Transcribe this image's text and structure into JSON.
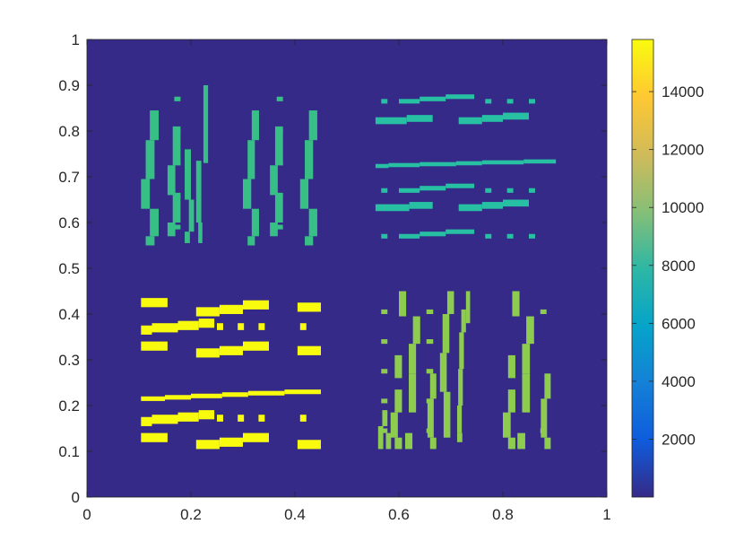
{
  "chart_data": {
    "type": "heatmap",
    "title": "",
    "xlabel": "",
    "ylabel": "",
    "xlim": [
      0,
      1
    ],
    "ylim": [
      0,
      1
    ],
    "grid": false,
    "background_value": 0,
    "xticks": [
      "0",
      "0.2",
      "0.4",
      "0.6",
      "0.8",
      "1"
    ],
    "yticks": [
      "0",
      "0.1",
      "0.2",
      "0.3",
      "0.4",
      "0.5",
      "0.6",
      "0.7",
      "0.8",
      "0.9",
      "1"
    ],
    "colorbar": {
      "colormap": "parula",
      "range": [
        0,
        15800
      ],
      "ticks": [
        "2000",
        "4000",
        "6000",
        "8000",
        "10000",
        "12000",
        "14000"
      ],
      "tick_values": [
        2000,
        4000,
        6000,
        8000,
        10000,
        12000,
        14000
      ],
      "colors": [
        "#352a87",
        "#0f5cdd",
        "#1481d6",
        "#06a4ca",
        "#2eb7a4",
        "#87bf77",
        "#d1bb59",
        "#fec832",
        "#f9fb0e"
      ]
    },
    "regions": [
      {
        "name": "top-left",
        "value": 9000,
        "color": "#37bf86",
        "orientation": "vertical",
        "x_range": [
          0.1,
          0.45
        ],
        "y_range": [
          0.55,
          0.9
        ],
        "rects": [
          [
            0.121,
            0.138,
            0.78,
            0.845
          ],
          [
            0.113,
            0.13,
            0.695,
            0.78
          ],
          [
            0.104,
            0.121,
            0.63,
            0.695
          ],
          [
            0.121,
            0.138,
            0.57,
            0.63
          ],
          [
            0.113,
            0.13,
            0.55,
            0.57
          ],
          [
            0.165,
            0.18,
            0.725,
            0.81
          ],
          [
            0.155,
            0.17,
            0.66,
            0.725
          ],
          [
            0.165,
            0.18,
            0.6,
            0.66
          ],
          [
            0.155,
            0.17,
            0.57,
            0.6
          ],
          [
            0.168,
            0.18,
            0.865,
            0.875
          ],
          [
            0.168,
            0.18,
            0.795,
            0.805
          ],
          [
            0.168,
            0.18,
            0.725,
            0.735
          ],
          [
            0.168,
            0.18,
            0.655,
            0.665
          ],
          [
            0.168,
            0.18,
            0.585,
            0.595
          ],
          [
            0.188,
            0.2,
            0.65,
            0.76
          ],
          [
            0.196,
            0.206,
            0.58,
            0.65
          ],
          [
            0.188,
            0.198,
            0.555,
            0.58
          ],
          [
            0.21,
            0.22,
            0.6,
            0.735
          ],
          [
            0.214,
            0.222,
            0.555,
            0.6
          ],
          [
            0.224,
            0.233,
            0.73,
            0.9
          ],
          [
            0.317,
            0.331,
            0.78,
            0.845
          ],
          [
            0.309,
            0.323,
            0.695,
            0.78
          ],
          [
            0.3,
            0.316,
            0.63,
            0.695
          ],
          [
            0.317,
            0.331,
            0.57,
            0.63
          ],
          [
            0.309,
            0.323,
            0.55,
            0.57
          ],
          [
            0.362,
            0.377,
            0.725,
            0.81
          ],
          [
            0.352,
            0.367,
            0.66,
            0.725
          ],
          [
            0.362,
            0.377,
            0.6,
            0.66
          ],
          [
            0.352,
            0.367,
            0.57,
            0.6
          ],
          [
            0.365,
            0.377,
            0.865,
            0.875
          ],
          [
            0.365,
            0.377,
            0.795,
            0.805
          ],
          [
            0.365,
            0.377,
            0.725,
            0.735
          ],
          [
            0.365,
            0.377,
            0.655,
            0.665
          ],
          [
            0.365,
            0.377,
            0.585,
            0.595
          ],
          [
            0.427,
            0.443,
            0.78,
            0.845
          ],
          [
            0.419,
            0.435,
            0.695,
            0.78
          ],
          [
            0.41,
            0.426,
            0.63,
            0.695
          ],
          [
            0.427,
            0.443,
            0.57,
            0.63
          ],
          [
            0.419,
            0.435,
            0.55,
            0.57
          ]
        ]
      },
      {
        "name": "top-right",
        "value": 8000,
        "color": "#27c0a3",
        "orientation": "horizontal",
        "x_range": [
          0.55,
          0.9
        ],
        "y_range": [
          0.55,
          0.9
        ],
        "rects": [
          [
            0.555,
            0.615,
            0.815,
            0.83
          ],
          [
            0.615,
            0.665,
            0.82,
            0.835
          ],
          [
            0.555,
            0.62,
            0.625,
            0.64
          ],
          [
            0.62,
            0.665,
            0.63,
            0.645
          ],
          [
            0.715,
            0.76,
            0.815,
            0.83
          ],
          [
            0.76,
            0.8,
            0.82,
            0.835
          ],
          [
            0.8,
            0.85,
            0.825,
            0.84
          ],
          [
            0.715,
            0.76,
            0.625,
            0.64
          ],
          [
            0.76,
            0.8,
            0.63,
            0.645
          ],
          [
            0.8,
            0.85,
            0.635,
            0.65
          ],
          [
            0.6,
            0.64,
            0.86,
            0.87
          ],
          [
            0.64,
            0.69,
            0.865,
            0.875
          ],
          [
            0.69,
            0.745,
            0.87,
            0.88
          ],
          [
            0.6,
            0.64,
            0.565,
            0.575
          ],
          [
            0.64,
            0.69,
            0.57,
            0.58
          ],
          [
            0.69,
            0.745,
            0.575,
            0.585
          ],
          [
            0.6,
            0.64,
            0.665,
            0.675
          ],
          [
            0.64,
            0.69,
            0.67,
            0.68
          ],
          [
            0.69,
            0.745,
            0.675,
            0.685
          ],
          [
            0.555,
            0.58,
            0.719,
            0.728
          ],
          [
            0.58,
            0.64,
            0.721,
            0.73
          ],
          [
            0.64,
            0.71,
            0.723,
            0.732
          ],
          [
            0.71,
            0.76,
            0.725,
            0.734
          ],
          [
            0.76,
            0.84,
            0.727,
            0.736
          ],
          [
            0.84,
            0.902,
            0.729,
            0.738
          ],
          [
            0.566,
            0.578,
            0.86,
            0.87
          ],
          [
            0.566,
            0.578,
            0.665,
            0.675
          ],
          [
            0.566,
            0.578,
            0.565,
            0.575
          ],
          [
            0.766,
            0.778,
            0.86,
            0.87
          ],
          [
            0.766,
            0.778,
            0.665,
            0.675
          ],
          [
            0.766,
            0.778,
            0.565,
            0.575
          ],
          [
            0.808,
            0.82,
            0.86,
            0.87
          ],
          [
            0.808,
            0.82,
            0.665,
            0.675
          ],
          [
            0.808,
            0.82,
            0.565,
            0.575
          ],
          [
            0.85,
            0.862,
            0.86,
            0.87
          ],
          [
            0.85,
            0.862,
            0.665,
            0.675
          ],
          [
            0.85,
            0.862,
            0.565,
            0.575
          ]
        ]
      },
      {
        "name": "bottom-left",
        "value": 15800,
        "color": "#f9fb0e",
        "orientation": "horizontal",
        "x_range": [
          0.1,
          0.45
        ],
        "y_range": [
          0.1,
          0.45
        ],
        "rects": [
          [
            0.104,
            0.155,
            0.415,
            0.435
          ],
          [
            0.104,
            0.155,
            0.32,
            0.34
          ],
          [
            0.104,
            0.155,
            0.12,
            0.14
          ],
          [
            0.104,
            0.125,
            0.355,
            0.375
          ],
          [
            0.125,
            0.175,
            0.36,
            0.38
          ],
          [
            0.175,
            0.215,
            0.365,
            0.385
          ],
          [
            0.215,
            0.245,
            0.37,
            0.39
          ],
          [
            0.104,
            0.125,
            0.155,
            0.175
          ],
          [
            0.125,
            0.175,
            0.16,
            0.18
          ],
          [
            0.175,
            0.215,
            0.165,
            0.185
          ],
          [
            0.215,
            0.245,
            0.17,
            0.19
          ],
          [
            0.21,
            0.255,
            0.395,
            0.415
          ],
          [
            0.255,
            0.3,
            0.4,
            0.42
          ],
          [
            0.3,
            0.35,
            0.41,
            0.43
          ],
          [
            0.21,
            0.255,
            0.305,
            0.325
          ],
          [
            0.255,
            0.3,
            0.31,
            0.33
          ],
          [
            0.3,
            0.35,
            0.32,
            0.34
          ],
          [
            0.21,
            0.255,
            0.105,
            0.125
          ],
          [
            0.255,
            0.3,
            0.11,
            0.13
          ],
          [
            0.3,
            0.35,
            0.12,
            0.14
          ],
          [
            0.25,
            0.262,
            0.365,
            0.38
          ],
          [
            0.29,
            0.302,
            0.365,
            0.38
          ],
          [
            0.33,
            0.342,
            0.365,
            0.38
          ],
          [
            0.25,
            0.262,
            0.165,
            0.18
          ],
          [
            0.29,
            0.302,
            0.165,
            0.18
          ],
          [
            0.33,
            0.342,
            0.165,
            0.18
          ],
          [
            0.405,
            0.45,
            0.405,
            0.425
          ],
          [
            0.405,
            0.45,
            0.31,
            0.33
          ],
          [
            0.405,
            0.45,
            0.105,
            0.125
          ],
          [
            0.41,
            0.422,
            0.365,
            0.38
          ],
          [
            0.41,
            0.422,
            0.165,
            0.18
          ],
          [
            0.104,
            0.15,
            0.21,
            0.22
          ],
          [
            0.15,
            0.2,
            0.213,
            0.223
          ],
          [
            0.2,
            0.26,
            0.216,
            0.226
          ],
          [
            0.26,
            0.31,
            0.219,
            0.229
          ],
          [
            0.31,
            0.38,
            0.222,
            0.232
          ],
          [
            0.38,
            0.45,
            0.225,
            0.235
          ]
        ]
      },
      {
        "name": "bottom-right",
        "value": 10800,
        "color": "#8ecc50",
        "orientation": "vertical",
        "x_range": [
          0.55,
          0.9
        ],
        "y_range": [
          0.1,
          0.45
        ],
        "rects": [
          [
            0.566,
            0.578,
            0.4,
            0.41
          ],
          [
            0.566,
            0.578,
            0.335,
            0.345
          ],
          [
            0.566,
            0.578,
            0.27,
            0.28
          ],
          [
            0.566,
            0.578,
            0.205,
            0.215
          ],
          [
            0.566,
            0.578,
            0.14,
            0.15
          ],
          [
            0.56,
            0.57,
            0.105,
            0.155
          ],
          [
            0.568,
            0.578,
            0.155,
            0.19
          ],
          [
            0.575,
            0.585,
            0.105,
            0.14
          ],
          [
            0.6,
            0.614,
            0.395,
            0.45
          ],
          [
            0.592,
            0.606,
            0.26,
            0.31
          ],
          [
            0.592,
            0.606,
            0.185,
            0.235
          ],
          [
            0.584,
            0.598,
            0.13,
            0.185
          ],
          [
            0.592,
            0.606,
            0.105,
            0.13
          ],
          [
            0.627,
            0.641,
            0.335,
            0.395
          ],
          [
            0.619,
            0.633,
            0.27,
            0.335
          ],
          [
            0.619,
            0.633,
            0.185,
            0.27
          ],
          [
            0.612,
            0.626,
            0.105,
            0.14
          ],
          [
            0.653,
            0.666,
            0.4,
            0.41
          ],
          [
            0.653,
            0.666,
            0.335,
            0.345
          ],
          [
            0.653,
            0.666,
            0.27,
            0.28
          ],
          [
            0.653,
            0.666,
            0.205,
            0.215
          ],
          [
            0.653,
            0.666,
            0.14,
            0.15
          ],
          [
            0.66,
            0.672,
            0.215,
            0.27
          ],
          [
            0.655,
            0.667,
            0.13,
            0.215
          ],
          [
            0.66,
            0.672,
            0.105,
            0.13
          ],
          [
            0.693,
            0.706,
            0.4,
            0.45
          ],
          [
            0.684,
            0.697,
            0.315,
            0.4
          ],
          [
            0.679,
            0.692,
            0.23,
            0.315
          ],
          [
            0.686,
            0.699,
            0.13,
            0.23
          ],
          [
            0.712,
            0.722,
            0.12,
            0.14
          ],
          [
            0.72,
            0.729,
            0.36,
            0.41
          ],
          [
            0.716,
            0.725,
            0.28,
            0.36
          ],
          [
            0.714,
            0.723,
            0.2,
            0.28
          ],
          [
            0.712,
            0.721,
            0.14,
            0.2
          ],
          [
            0.729,
            0.737,
            0.38,
            0.45
          ],
          [
            0.818,
            0.832,
            0.395,
            0.45
          ],
          [
            0.81,
            0.824,
            0.26,
            0.31
          ],
          [
            0.81,
            0.824,
            0.185,
            0.235
          ],
          [
            0.8,
            0.815,
            0.13,
            0.185
          ],
          [
            0.81,
            0.824,
            0.105,
            0.13
          ],
          [
            0.845,
            0.86,
            0.335,
            0.395
          ],
          [
            0.837,
            0.852,
            0.27,
            0.335
          ],
          [
            0.837,
            0.852,
            0.185,
            0.27
          ],
          [
            0.828,
            0.843,
            0.105,
            0.14
          ],
          [
            0.872,
            0.884,
            0.4,
            0.41
          ],
          [
            0.872,
            0.884,
            0.14,
            0.15
          ],
          [
            0.88,
            0.892,
            0.215,
            0.27
          ],
          [
            0.873,
            0.885,
            0.13,
            0.215
          ],
          [
            0.88,
            0.892,
            0.105,
            0.13
          ]
        ]
      }
    ]
  }
}
